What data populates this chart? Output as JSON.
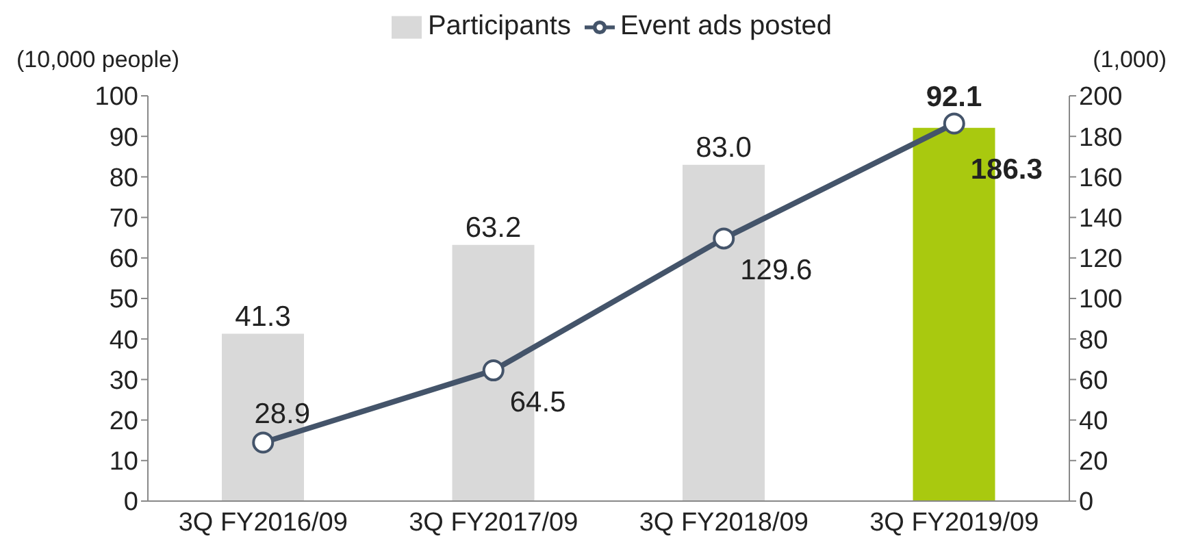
{
  "chart_data": {
    "type": "bar",
    "categories": [
      "3Q FY2016/09",
      "3Q FY2017/09",
      "3Q FY2018/09",
      "3Q FY2019/09"
    ],
    "ylabel": "(10,000 people)",
    "y2label": "(1,000)",
    "ylim": [
      0,
      100
    ],
    "yticks": [
      0,
      10,
      20,
      30,
      40,
      50,
      60,
      70,
      80,
      90,
      100
    ],
    "y2lim": [
      0,
      200
    ],
    "y2ticks": [
      0,
      20,
      40,
      60,
      80,
      100,
      120,
      140,
      160,
      180,
      200
    ],
    "legend": "top",
    "marker": "circle",
    "series": [
      {
        "name": "Participants",
        "color": "#d9d9d9",
        "colors": [
          "#d9d9d9",
          "#d9d9d9",
          "#d9d9d9",
          "#a9c90f"
        ],
        "values": [
          41.3,
          63.2,
          83.0,
          92.1
        ],
        "value_labels": [
          "41.3",
          "63.2",
          "83.0",
          "92.1"
        ]
      },
      {
        "name": "Event ads posted",
        "type": "line",
        "axis": "y2",
        "color": "#44546a",
        "values": [
          28.9,
          64.5,
          129.6,
          186.3
        ],
        "value_labels": [
          "28.9",
          "64.5",
          "129.6",
          "186.3"
        ]
      }
    ]
  }
}
